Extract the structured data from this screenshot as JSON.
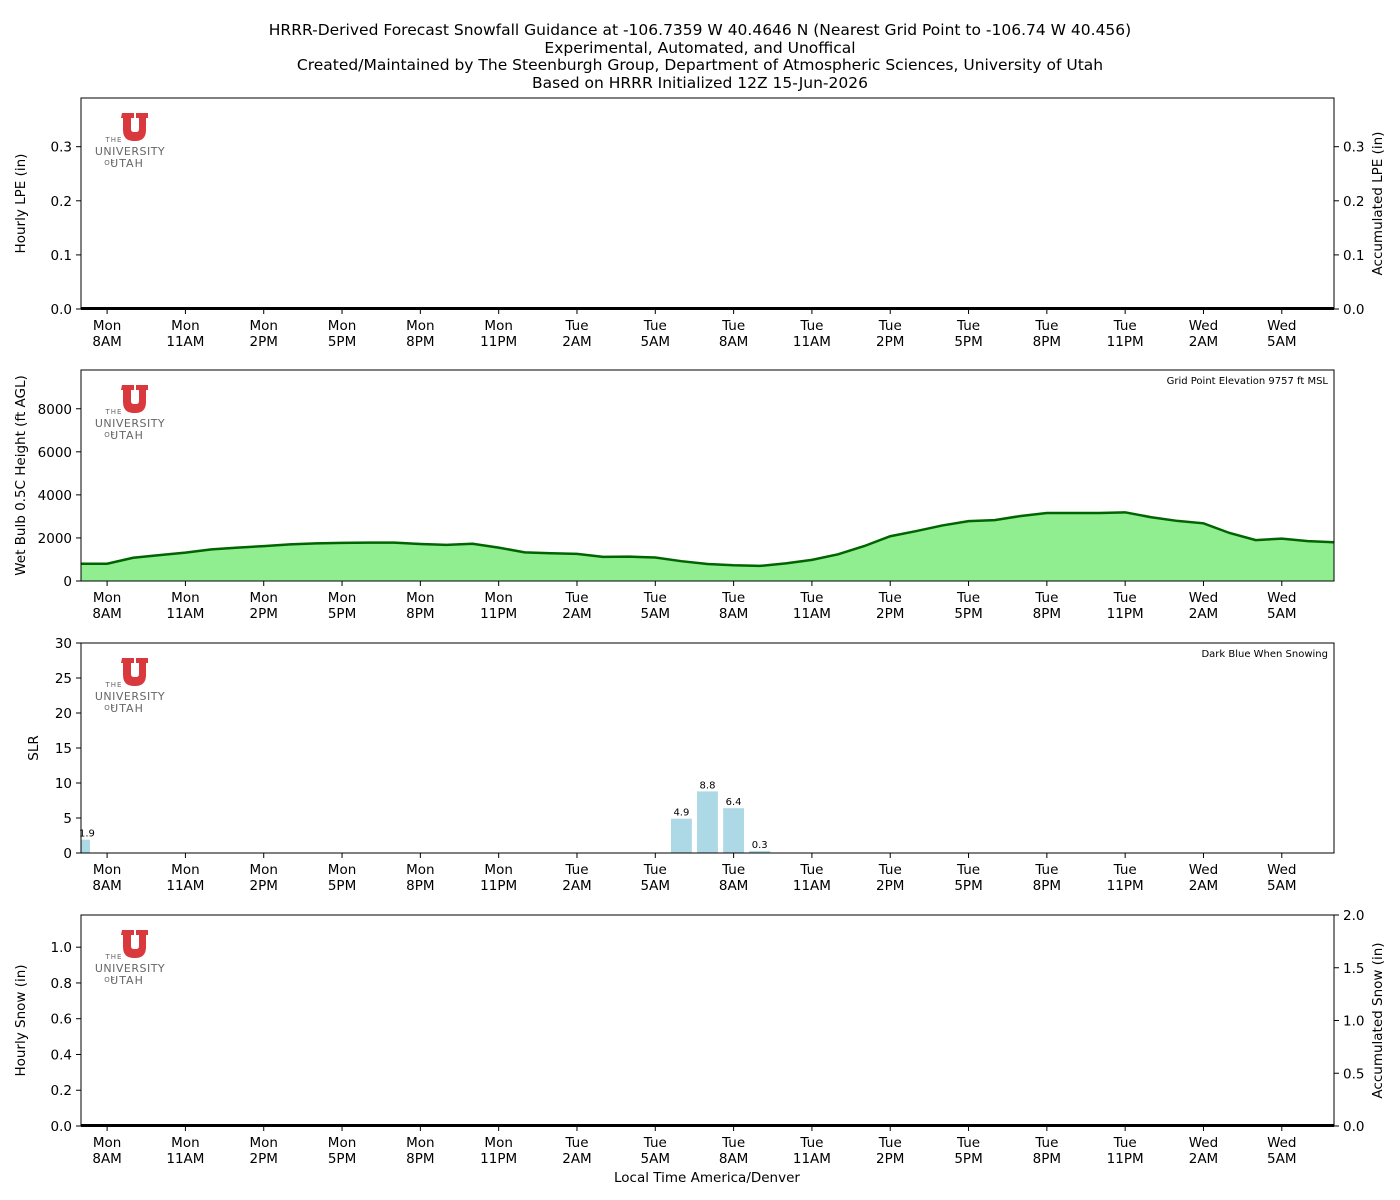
{
  "header": {
    "title_lines": [
      "HRRR-Derived Forecast Snowfall Guidance at -106.7359 W 40.4646 N (Nearest Grid Point to -106.74 W 40.456)",
      "Experimental, Automated, and Unoffical",
      "Created/Maintained by The Steenburgh Group, Department of Atmospheric Sciences, University of Utah",
      "Based on HRRR Initialized 12Z 15-Jun-2026"
    ]
  },
  "logo": {
    "line1": "THE",
    "line2": "UNIVERSITY",
    "line3": "OF",
    "line4": "UTAH",
    "color": "#d9383d"
  },
  "chart_data": [
    {
      "type": "bar+line",
      "id": "lpe",
      "ylabel_left": "Hourly LPE (in)",
      "ylabel_right": "Accumulated LPE (in)",
      "ylim": [
        0,
        0.39
      ],
      "yticks": [
        "0.0",
        "0.1",
        "0.2",
        "0.3"
      ],
      "ytick_values": [
        0,
        0.1,
        0.2,
        0.3
      ],
      "hours": [
        0,
        1,
        2,
        3,
        4,
        5,
        6,
        7,
        8,
        9,
        10,
        11,
        12,
        13,
        14,
        15,
        16,
        17,
        18,
        19,
        20,
        21,
        22,
        23,
        24,
        25,
        26,
        27,
        28,
        29,
        30,
        31,
        32,
        33,
        34,
        35,
        36,
        37,
        38,
        39,
        40,
        41,
        42,
        43,
        44,
        45,
        46,
        47
      ],
      "values": [
        0,
        0,
        0,
        0,
        0,
        0,
        0,
        0,
        0,
        0,
        0,
        0,
        0,
        0,
        0,
        0,
        0,
        0,
        0,
        0,
        0,
        0,
        0,
        0,
        0,
        0,
        0,
        0,
        0,
        0,
        0,
        0,
        0,
        0,
        0,
        0,
        0,
        0,
        0,
        0,
        0,
        0,
        0,
        0,
        0,
        0,
        0,
        0
      ],
      "accumulated": [
        0,
        0,
        0,
        0,
        0,
        0,
        0,
        0,
        0,
        0,
        0,
        0,
        0,
        0,
        0,
        0,
        0,
        0,
        0,
        0,
        0,
        0,
        0,
        0,
        0,
        0,
        0,
        0,
        0,
        0,
        0,
        0,
        0,
        0,
        0,
        0,
        0,
        0,
        0,
        0,
        0,
        0,
        0,
        0,
        0,
        0,
        0,
        0
      ],
      "annotation": ""
    },
    {
      "type": "area",
      "id": "wetbulb",
      "ylabel_left": "Wet Bulb 0.5C Height (ft AGL)",
      "ylim": [
        0,
        9800
      ],
      "yticks": [
        "0",
        "2000",
        "4000",
        "6000",
        "8000"
      ],
      "ytick_values": [
        0,
        2000,
        4000,
        6000,
        8000
      ],
      "hours": [
        0,
        1,
        2,
        3,
        4,
        5,
        6,
        7,
        8,
        9,
        10,
        11,
        12,
        13,
        14,
        15,
        16,
        17,
        18,
        19,
        20,
        21,
        22,
        23,
        24,
        25,
        26,
        27,
        28,
        29,
        30,
        31,
        32,
        33,
        34,
        35,
        36,
        37,
        38,
        39,
        40,
        41,
        42,
        43,
        44,
        45,
        46,
        47
      ],
      "values": [
        800,
        1080,
        1200,
        1320,
        1470,
        1550,
        1620,
        1700,
        1750,
        1770,
        1780,
        1780,
        1720,
        1680,
        1730,
        1550,
        1330,
        1290,
        1260,
        1120,
        1130,
        1090,
        920,
        790,
        730,
        700,
        820,
        980,
        1240,
        1620,
        2080,
        2320,
        2580,
        2780,
        2830,
        3020,
        3160,
        3160,
        3160,
        3190,
        2960,
        2790,
        2680,
        2230,
        1900,
        1970,
        1850,
        1800
      ],
      "annotation": "Grid Point Elevation 9757 ft MSL",
      "fill_color": "#90ee90",
      "line_color": "#006400"
    },
    {
      "type": "bar",
      "id": "slr",
      "ylabel_left": "SLR",
      "ylim": [
        0,
        30
      ],
      "yticks": [
        "0",
        "5",
        "10",
        "15",
        "20",
        "25",
        "30"
      ],
      "ytick_values": [
        0,
        5,
        10,
        15,
        20,
        25,
        30
      ],
      "bars": [
        {
          "hour": 0,
          "value": 1.9,
          "label": "1.9"
        },
        {
          "hour": 22,
          "value": 4.9,
          "label": "4.9"
        },
        {
          "hour": 23,
          "value": 8.8,
          "label": "8.8"
        },
        {
          "hour": 24,
          "value": 6.4,
          "label": "6.4"
        },
        {
          "hour": 25,
          "value": 0.3,
          "label": "0.3"
        }
      ],
      "annotation": "Dark Blue When Snowing",
      "bar_color": "#add8e6",
      "snow_color": "#00008b"
    },
    {
      "type": "bar+line",
      "id": "snow",
      "ylabel_left": "Hourly Snow (in)",
      "ylabel_right": "Accumulated Snow (in)",
      "ylim": [
        0,
        1.18
      ],
      "yticks": [
        "0.0",
        "0.2",
        "0.4",
        "0.6",
        "0.8",
        "1.0"
      ],
      "ytick_values": [
        0,
        0.2,
        0.4,
        0.6,
        0.8,
        1.0
      ],
      "ylim_right": [
        0,
        2.0
      ],
      "yticks_right": [
        "0.0",
        "0.5",
        "1.0",
        "1.5",
        "2.0"
      ],
      "ytick_values_right": [
        0,
        0.5,
        1.0,
        1.5,
        2.0
      ],
      "hours": [
        0,
        1,
        2,
        3,
        4,
        5,
        6,
        7,
        8,
        9,
        10,
        11,
        12,
        13,
        14,
        15,
        16,
        17,
        18,
        19,
        20,
        21,
        22,
        23,
        24,
        25,
        26,
        27,
        28,
        29,
        30,
        31,
        32,
        33,
        34,
        35,
        36,
        37,
        38,
        39,
        40,
        41,
        42,
        43,
        44,
        45,
        46,
        47
      ],
      "values": [
        0,
        0,
        0,
        0,
        0,
        0,
        0,
        0,
        0,
        0,
        0,
        0,
        0,
        0,
        0,
        0,
        0,
        0,
        0,
        0,
        0,
        0,
        0,
        0,
        0,
        0,
        0,
        0,
        0,
        0,
        0,
        0,
        0,
        0,
        0,
        0,
        0,
        0,
        0,
        0,
        0,
        0,
        0,
        0,
        0,
        0,
        0,
        0
      ],
      "accumulated": [
        0,
        0,
        0,
        0,
        0,
        0,
        0,
        0,
        0,
        0,
        0,
        0,
        0,
        0,
        0,
        0,
        0,
        0,
        0,
        0,
        0,
        0,
        0,
        0,
        0,
        0,
        0,
        0,
        0,
        0,
        0,
        0,
        0,
        0,
        0,
        0,
        0,
        0,
        0,
        0,
        0,
        0,
        0,
        0,
        0,
        0,
        0,
        0
      ],
      "annotation": ""
    }
  ],
  "x_axis": {
    "hours_range": [
      -1,
      47
    ],
    "tick_hours": [
      0,
      3,
      6,
      9,
      12,
      15,
      18,
      21,
      24,
      27,
      30,
      33,
      36,
      39,
      42,
      45
    ],
    "tick_days": [
      "Mon",
      "Mon",
      "Mon",
      "Mon",
      "Mon",
      "Mon",
      "Tue",
      "Tue",
      "Tue",
      "Tue",
      "Tue",
      "Tue",
      "Tue",
      "Tue",
      "Wed",
      "Wed"
    ],
    "tick_times": [
      "8AM",
      "11AM",
      "2PM",
      "5PM",
      "8PM",
      "11PM",
      "2AM",
      "5AM",
      "8AM",
      "11AM",
      "2PM",
      "5PM",
      "8PM",
      "11PM",
      "2AM",
      "5AM"
    ],
    "xlabel": "Local Time America/Denver"
  }
}
